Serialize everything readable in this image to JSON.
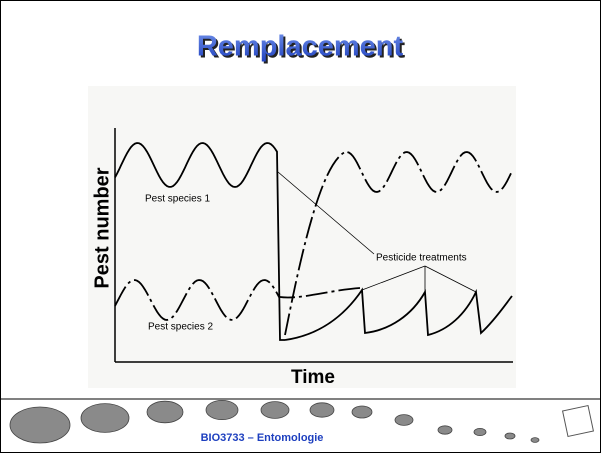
{
  "slide": {
    "title": "Remplacement",
    "figure": {
      "y_label": "Pest number",
      "x_label": "Time",
      "labels": [
        "Pest species 1",
        "Pest species 2",
        "Pesticide treatments"
      ]
    },
    "footer": "BIO3733 – Entomologie"
  }
}
